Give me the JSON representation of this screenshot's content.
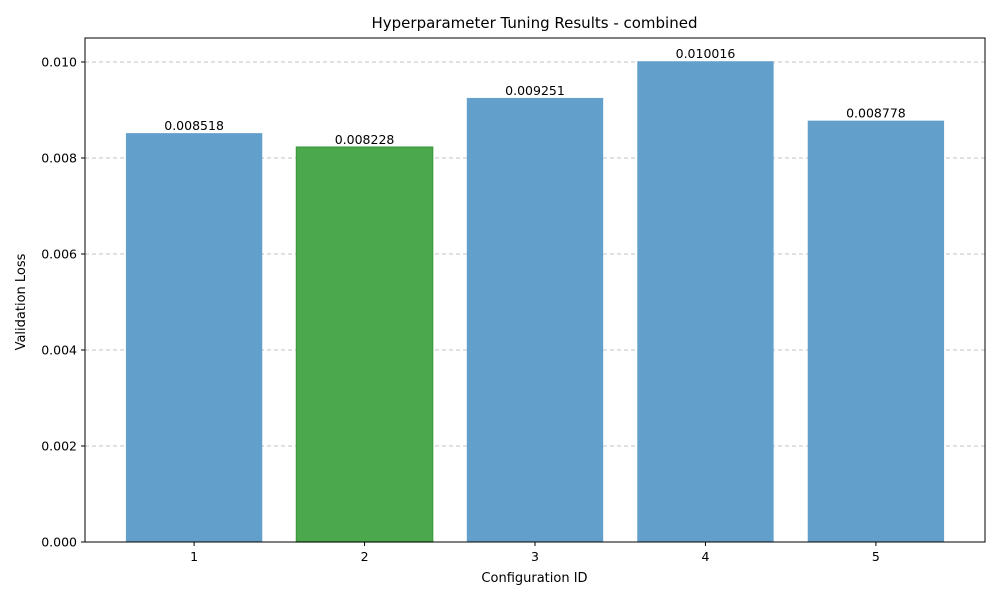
{
  "chart_data": {
    "type": "bar",
    "title": "Hyperparameter Tuning Results - combined",
    "xlabel": "Configuration ID",
    "ylabel": "Validation Loss",
    "categories": [
      "1",
      "2",
      "3",
      "4",
      "5"
    ],
    "values": [
      0.008518,
      0.008228,
      0.009251,
      0.010016,
      0.008778
    ],
    "value_labels": [
      "0.008518",
      "0.008228",
      "0.009251",
      "0.010016",
      "0.008778"
    ],
    "bar_colors": [
      "#629fcb",
      "#4ba84c",
      "#629fcb",
      "#629fcb",
      "#629fcb"
    ],
    "highlighted_category": "2",
    "ylim": [
      0,
      0.0105
    ],
    "yticks": [
      0.0,
      0.002,
      0.004,
      0.006,
      0.008,
      0.01
    ],
    "ytick_labels": [
      "0.000",
      "0.002",
      "0.004",
      "0.006",
      "0.008",
      "0.010"
    ],
    "grid": "y-dashed",
    "legend": "none"
  }
}
